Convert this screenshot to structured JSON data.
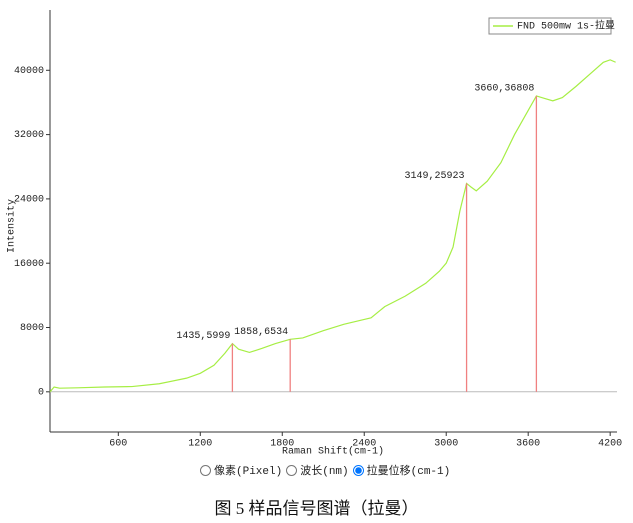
{
  "chart_data": {
    "type": "line",
    "x_label": "Raman Shift(cm-1)",
    "y_label": "Intensity",
    "xlim": [
      100,
      4250
    ],
    "ylim": [
      -5000,
      47500
    ],
    "xticks": [
      600,
      1200,
      1800,
      2400,
      3000,
      3600,
      4200
    ],
    "yticks": [
      0,
      8000,
      16000,
      24000,
      32000,
      40000
    ],
    "legend": "top-right",
    "series": [
      {
        "name": "FND 500mw 1s-拉曼",
        "color": "#a6ee44",
        "x": [
          100,
          130,
          170,
          300,
          500,
          700,
          900,
          1100,
          1200,
          1300,
          1380,
          1435,
          1480,
          1560,
          1650,
          1750,
          1858,
          1950,
          2100,
          2250,
          2400,
          2450,
          2550,
          2700,
          2850,
          2950,
          3000,
          3050,
          3100,
          3149,
          3180,
          3220,
          3300,
          3400,
          3500,
          3600,
          3660,
          3720,
          3780,
          3850,
          3950,
          4050,
          4150,
          4200,
          4240
        ],
        "values": [
          0,
          600,
          450,
          500,
          600,
          650,
          1000,
          1700,
          2300,
          3300,
          4800,
          5999,
          5300,
          4900,
          5400,
          6000,
          6534,
          6700,
          7600,
          8400,
          9000,
          9200,
          10600,
          11900,
          13500,
          15000,
          16000,
          18000,
          22500,
          25923,
          25500,
          25000,
          26200,
          28500,
          32000,
          35000,
          36808,
          36500,
          36200,
          36600,
          38000,
          39500,
          41000,
          41300,
          41000
        ]
      }
    ],
    "annotations": [
      {
        "x": 1435,
        "y": 5999,
        "label": "1435,5999",
        "color": "#f08080"
      },
      {
        "x": 1858,
        "y": 6534,
        "label": "1858,6534",
        "color": "#f08080"
      },
      {
        "x": 3149,
        "y": 25923,
        "label": "3149,25923",
        "color": "#f08080"
      },
      {
        "x": 3660,
        "y": 36808,
        "label": "3660,36808",
        "color": "#f08080"
      }
    ]
  },
  "controls": {
    "options": [
      "像素(Pixel)",
      "波长(nm)",
      "拉曼位移(cm-1)"
    ],
    "selected": 2
  },
  "caption": "图 5 样品信号图谱（拉曼）"
}
